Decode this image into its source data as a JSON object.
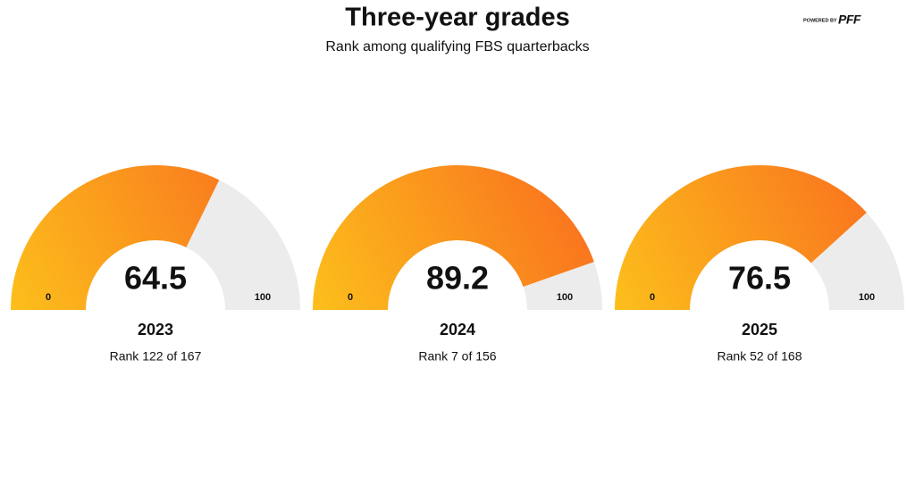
{
  "title": "Three-year grades",
  "subtitle": "Rank among qualifying FBS quarterbacks",
  "brand": {
    "prefix": "POWERED BY",
    "name": "PFF"
  },
  "chart_data": [
    {
      "type": "gauge",
      "value": 64.5,
      "ylim": [
        0,
        100
      ],
      "yticks": [
        0,
        100
      ],
      "label": "2023",
      "caption": "Rank 122 of 167",
      "color": [
        "#fcbf1b",
        "#f9691f"
      ],
      "track_color": "#ececec"
    },
    {
      "type": "gauge",
      "value": 89.2,
      "ylim": [
        0,
        100
      ],
      "yticks": [
        0,
        100
      ],
      "label": "2024",
      "caption": "Rank 7 of 156",
      "color": [
        "#fcbf1b",
        "#f9691f"
      ],
      "track_color": "#ececec"
    },
    {
      "type": "gauge",
      "value": 76.5,
      "ylim": [
        0,
        100
      ],
      "yticks": [
        0,
        100
      ],
      "label": "2025",
      "caption": "Rank 52 of 168",
      "color": [
        "#fcbf1b",
        "#f9691f"
      ],
      "track_color": "#ececec"
    }
  ]
}
